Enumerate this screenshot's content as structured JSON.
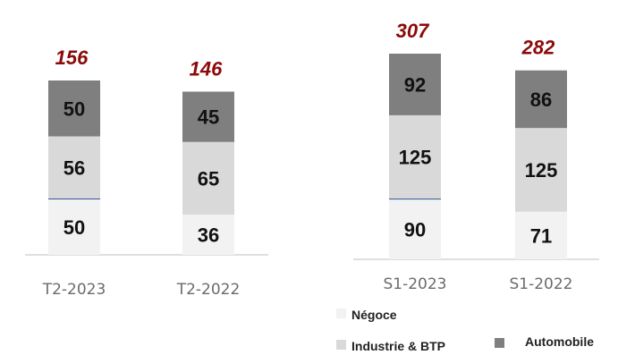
{
  "colors": {
    "negoce": "#f2f2f2",
    "industrie": "#d9d9d9",
    "automobile": "#7f7f7f",
    "total": "#8b0a0a",
    "axis": "#bfbfbf",
    "divider": "#2f5597"
  },
  "chart_data": [
    {
      "type": "bar",
      "stacked": true,
      "categories": [
        "T2-2023",
        "T2-2022"
      ],
      "series": [
        {
          "name": "Négoce",
          "values": [
            50,
            36
          ]
        },
        {
          "name": "Industrie & BTP",
          "values": [
            56,
            65
          ]
        },
        {
          "name": "Automobile",
          "values": [
            50,
            45
          ]
        }
      ],
      "totals": [
        156,
        146
      ],
      "title": "",
      "xlabel": "",
      "ylabel": ""
    },
    {
      "type": "bar",
      "stacked": true,
      "categories": [
        "S1-2023",
        "S1-2022"
      ],
      "series": [
        {
          "name": "Négoce",
          "values": [
            90,
            71
          ]
        },
        {
          "name": "Industrie & BTP",
          "values": [
            125,
            125
          ]
        },
        {
          "name": "Automobile",
          "values": [
            92,
            86
          ]
        }
      ],
      "totals": [
        307,
        282
      ],
      "title": "",
      "xlabel": "",
      "ylabel": ""
    }
  ],
  "legend": {
    "position": "bottom-right",
    "items": [
      {
        "label": "Négoce",
        "color": "#f2f2f2"
      },
      {
        "label": "Industrie & BTP",
        "color": "#d9d9d9"
      },
      {
        "label": "Automobile",
        "color": "#7f7f7f"
      }
    ]
  }
}
